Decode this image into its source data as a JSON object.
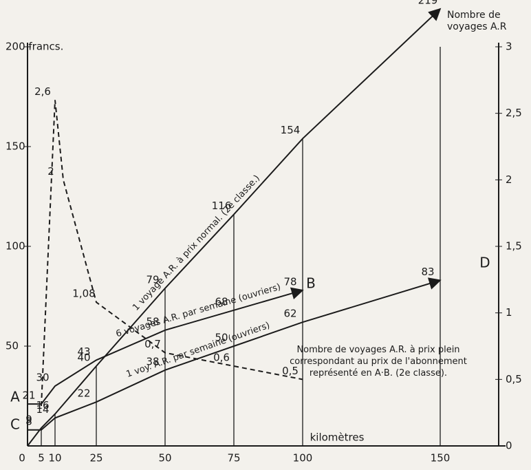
{
  "chart_data": {
    "type": "line",
    "x_label": "kilomètres",
    "y2_label": "Nombre de voyages A.R",
    "xlim": [
      0,
      171.25
    ],
    "xticks": [
      0,
      5,
      10,
      25,
      50,
      75,
      100,
      150
    ],
    "ylim": [
      0,
      200
    ],
    "yticks": [
      50,
      100,
      150,
      {
        "value": 200,
        "label": "200 francs."
      }
    ],
    "y2lim": [
      0,
      3
    ],
    "y2ticks": [
      0,
      {
        "value": 0.5,
        "label": "0,5"
      },
      1,
      {
        "value": 1.5,
        "label": "1,5"
      },
      2,
      {
        "value": 2.5,
        "label": "2,5"
      },
      3
    ],
    "grid": true,
    "annotations": [
      "A",
      "B",
      "C",
      "D"
    ],
    "series": [
      {
        "name": "1 voyage A.R. à prix normal. (2e classe.)",
        "color": "#1b1b1b",
        "dash": false,
        "x": [
          0,
          5,
          10,
          25,
          50,
          75,
          100,
          150
        ],
        "values": [
          0,
          9,
          16,
          40,
          79,
          116,
          154,
          219
        ],
        "value_labels": [
          null,
          "9",
          "16",
          "40",
          "79",
          "116",
          "154",
          "219"
        ]
      },
      {
        "name": "6 voyages A.R. par semaine (ouvriers)",
        "color": "#1b1b1b",
        "dash": false,
        "x": [
          0,
          5,
          10,
          25,
          50,
          75,
          100
        ],
        "values": [
          21,
          21,
          30,
          43,
          58,
          68,
          78
        ],
        "value_labels": [
          null,
          "21",
          "30",
          "43",
          "58",
          "68",
          "78"
        ]
      },
      {
        "name": "1 voy. A.R. par semaine (ouvriers)",
        "color": "#1b1b1b",
        "dash": false,
        "x": [
          0,
          5,
          10,
          25,
          50,
          75,
          100,
          150
        ],
        "values": [
          8,
          8,
          14,
          22,
          38,
          50,
          62,
          83
        ],
        "value_labels": [
          null,
          "8",
          "14",
          "22",
          "38",
          "50",
          "62",
          "83"
        ]
      },
      {
        "name": "Nombre de voyages A.R. à prix plein correspondant au prix de l'abonnement représenté en A·B. (2e classe).",
        "color": "#1b1b1b",
        "dash": true,
        "axis": "y2",
        "x": [
          5,
          10,
          13,
          25,
          50,
          75,
          100
        ],
        "values": [
          0.3,
          2.6,
          2,
          1.08,
          0.7,
          0.6,
          0.5
        ],
        "value_labels": [
          null,
          "2,6",
          "2",
          "1,08",
          "0,7",
          "0,6",
          "0,5"
        ]
      }
    ]
  }
}
